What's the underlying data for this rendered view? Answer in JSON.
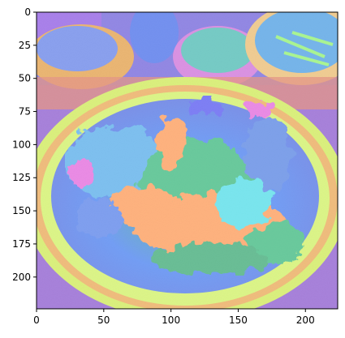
{
  "figure": {
    "image_extent": {
      "width": 224,
      "height": 224
    },
    "x_axis": {
      "ticks": [
        0,
        50,
        100,
        150,
        200
      ],
      "labels": [
        "0",
        "50",
        "100",
        "150",
        "200"
      ]
    },
    "y_axis": {
      "ticks": [
        0,
        25,
        50,
        75,
        100,
        125,
        150,
        175,
        200
      ],
      "labels": [
        "0",
        "25",
        "50",
        "75",
        "100",
        "125",
        "150",
        "175",
        "200"
      ]
    },
    "image_description_colors": {
      "background_top": "#6a3fd0",
      "bowl_rim": "#c8e83a",
      "bowl_interior": "#2a6cf0",
      "food_orange": "#ff8a3a",
      "food_green": "#1fae6a",
      "accent_magenta": "#e04fd8",
      "accent_cyan": "#34d9e6"
    }
  }
}
